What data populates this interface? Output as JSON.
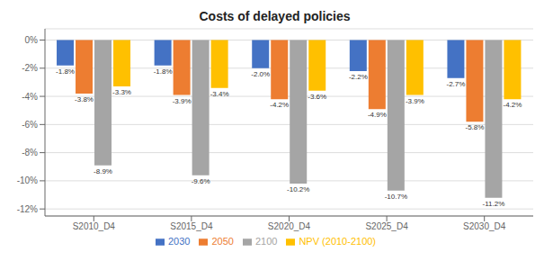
{
  "chart_data": {
    "type": "bar",
    "title": "Costs of delayed policies",
    "categories": [
      "S2010_D4",
      "S2015_D4",
      "S2020_D4",
      "S2025_D4",
      "S2030_D4"
    ],
    "series": [
      {
        "name": "2030",
        "color": "#4472C4",
        "values": [
          -1.8,
          -1.8,
          -2.0,
          -2.2,
          -2.7
        ],
        "value_labels": [
          "-1.8%",
          "-1.8%",
          "-2.0%",
          "-2.2%",
          "-2.7%"
        ]
      },
      {
        "name": "2050",
        "color": "#ED7D31",
        "values": [
          -3.8,
          -3.9,
          -4.2,
          -4.9,
          -5.8
        ],
        "value_labels": [
          "-3.8%",
          "-3.9%",
          "-4.2%",
          "-4.9%",
          "-5.8%"
        ]
      },
      {
        "name": "2100",
        "color": "#A5A5A5",
        "values": [
          -8.9,
          -9.6,
          -10.2,
          -10.7,
          -11.2
        ],
        "value_labels": [
          "-8.9%",
          "-9.6%",
          "-10.2%",
          "-10.7%",
          "-11.2%"
        ]
      },
      {
        "name": "NPV (2010-2100)",
        "color": "#FFC000",
        "values": [
          -3.3,
          -3.4,
          -3.6,
          -3.9,
          -4.2
        ],
        "value_labels": [
          "-3.3%",
          "-3.4%",
          "-3.6%",
          "-3.9%",
          "-4.2%"
        ]
      }
    ],
    "ylim": [
      -12.5,
      0.8
    ],
    "yticks": [
      {
        "value": 0,
        "label": "0%"
      },
      {
        "value": -2,
        "label": "-2%"
      },
      {
        "value": -4,
        "label": "-4%"
      },
      {
        "value": -6,
        "label": "-6%"
      },
      {
        "value": -8,
        "label": "-8%"
      },
      {
        "value": -10,
        "label": "-10%"
      },
      {
        "value": -12,
        "label": "-12%"
      }
    ],
    "grid": true,
    "legend": "bottom",
    "data_labels": true
  }
}
